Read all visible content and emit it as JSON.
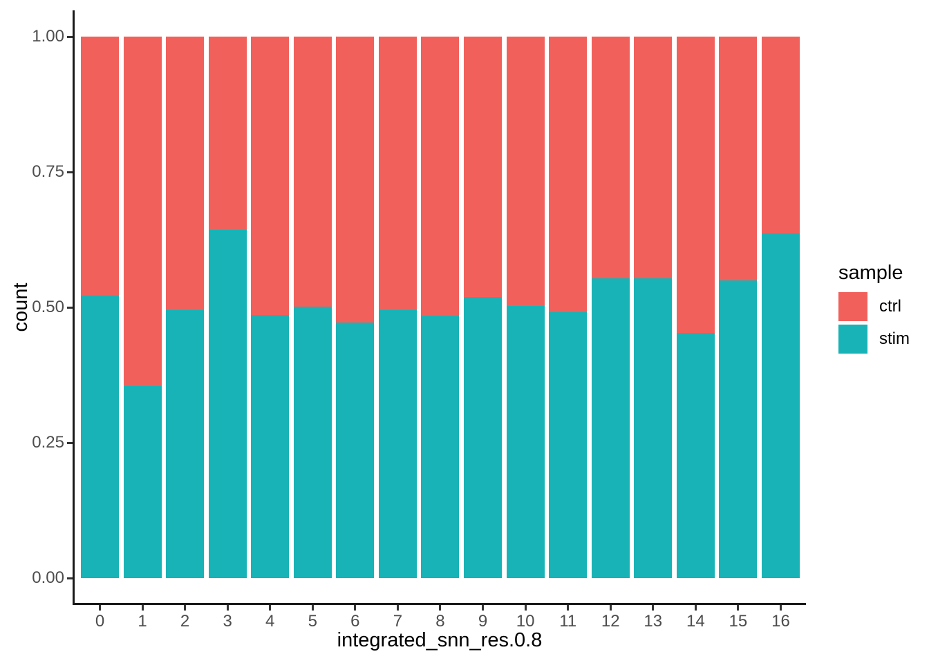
{
  "chart_data": {
    "type": "bar",
    "stacked": true,
    "normalized": true,
    "title": "",
    "xlabel": "integrated_snn_res.0.8",
    "ylabel": "count",
    "categories": [
      "0",
      "1",
      "2",
      "3",
      "4",
      "5",
      "6",
      "7",
      "8",
      "9",
      "10",
      "11",
      "12",
      "13",
      "14",
      "15",
      "16"
    ],
    "series": [
      {
        "name": "ctrl",
        "color": "#F2605C",
        "values": [
          0.478,
          0.645,
          0.505,
          0.357,
          0.514,
          0.499,
          0.528,
          0.505,
          0.515,
          0.481,
          0.497,
          0.509,
          0.446,
          0.446,
          0.547,
          0.45,
          0.363
        ]
      },
      {
        "name": "stim",
        "color": "#18B3B6",
        "values": [
          0.522,
          0.355,
          0.495,
          0.643,
          0.486,
          0.501,
          0.472,
          0.495,
          0.485,
          0.519,
          0.503,
          0.491,
          0.554,
          0.554,
          0.453,
          0.55,
          0.637
        ]
      }
    ],
    "ylim": [
      0,
      1
    ],
    "yticks": [
      "0.00",
      "0.25",
      "0.50",
      "0.75",
      "1.00"
    ],
    "grid": false,
    "legend": {
      "title": "sample",
      "position": "right",
      "items": [
        "ctrl",
        "stim"
      ]
    },
    "theme": {
      "background": "#FFFFFF",
      "axis_line": "#1A1A1A",
      "tick_color": "#333333",
      "axis_text": "#4D4D4D",
      "axis_title_color": "#000000"
    }
  }
}
